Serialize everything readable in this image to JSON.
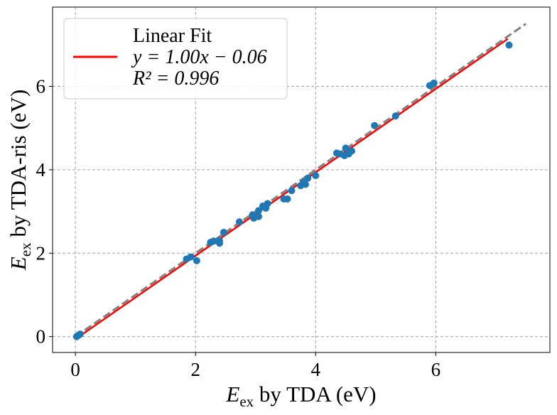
{
  "chart_data": {
    "type": "scatter",
    "x_axis": {
      "label_main": "E",
      "label_sub": "ex",
      "label_rest": " by TDA (eV)",
      "ticks": [
        0,
        2,
        4,
        6
      ],
      "tick_labels": [
        "0",
        "2",
        "4",
        "6"
      ],
      "range": [
        -0.38,
        7.9
      ]
    },
    "y_axis": {
      "label_main": "E",
      "label_sub": "ex",
      "label_rest": " by TDA-ris (eV)",
      "ticks": [
        0,
        2,
        4,
        6
      ],
      "tick_labels": [
        "0",
        "2",
        "4",
        "6"
      ],
      "range": [
        -0.38,
        7.9
      ]
    },
    "grid": true,
    "legend": {
      "position": "top-left",
      "lines": [
        "Linear Fit",
        "y = 1.00x − 0.06",
        "R² = 0.996"
      ],
      "line_color": "#ff0000"
    },
    "identity_line": {
      "x": [
        0,
        7.5
      ],
      "y": [
        0,
        7.5
      ],
      "color": "#808080",
      "style": "dashed"
    },
    "fit_line": {
      "slope": 1.0,
      "intercept": -0.06,
      "x": [
        0,
        7.2
      ],
      "color": "#ff0000"
    },
    "points_color": "#1f77b4",
    "points": [
      {
        "x": 0.02,
        "y": 0.0
      },
      {
        "x": 0.05,
        "y": 0.03
      },
      {
        "x": 0.08,
        "y": 0.06
      },
      {
        "x": 1.85,
        "y": 1.86
      },
      {
        "x": 1.92,
        "y": 1.91
      },
      {
        "x": 2.02,
        "y": 1.82
      },
      {
        "x": 2.25,
        "y": 2.26
      },
      {
        "x": 2.3,
        "y": 2.29
      },
      {
        "x": 2.4,
        "y": 2.24
      },
      {
        "x": 2.4,
        "y": 2.3
      },
      {
        "x": 2.47,
        "y": 2.5
      },
      {
        "x": 2.73,
        "y": 2.75
      },
      {
        "x": 2.95,
        "y": 2.92
      },
      {
        "x": 2.97,
        "y": 2.84
      },
      {
        "x": 3.05,
        "y": 2.88
      },
      {
        "x": 3.05,
        "y": 3.02
      },
      {
        "x": 3.12,
        "y": 3.13
      },
      {
        "x": 3.17,
        "y": 3.08
      },
      {
        "x": 3.2,
        "y": 3.19
      },
      {
        "x": 3.47,
        "y": 3.3
      },
      {
        "x": 3.53,
        "y": 3.3
      },
      {
        "x": 3.6,
        "y": 3.5
      },
      {
        "x": 3.75,
        "y": 3.62
      },
      {
        "x": 3.8,
        "y": 3.7
      },
      {
        "x": 3.83,
        "y": 3.65
      },
      {
        "x": 3.87,
        "y": 3.8
      },
      {
        "x": 4.0,
        "y": 3.86
      },
      {
        "x": 4.35,
        "y": 4.4
      },
      {
        "x": 4.4,
        "y": 4.38
      },
      {
        "x": 4.48,
        "y": 4.34
      },
      {
        "x": 4.5,
        "y": 4.52
      },
      {
        "x": 4.55,
        "y": 4.38
      },
      {
        "x": 4.6,
        "y": 4.45
      },
      {
        "x": 4.98,
        "y": 5.06
      },
      {
        "x": 5.33,
        "y": 5.29
      },
      {
        "x": 5.9,
        "y": 6.02
      },
      {
        "x": 5.97,
        "y": 6.08
      },
      {
        "x": 7.22,
        "y": 6.99
      }
    ]
  }
}
